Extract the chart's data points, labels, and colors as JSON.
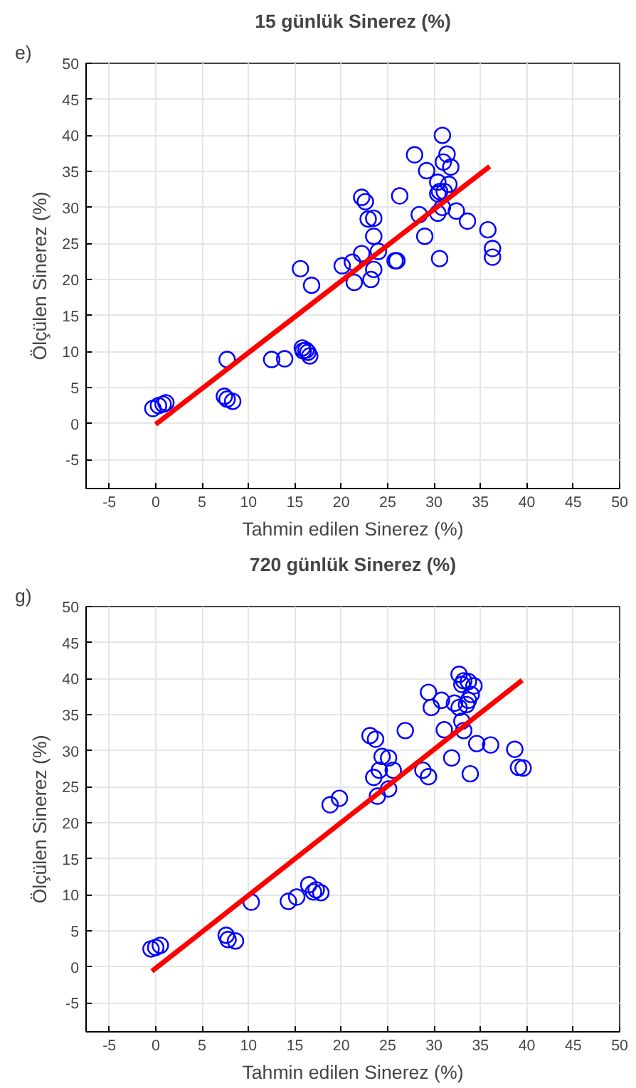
{
  "chart_data": [
    {
      "type": "scatter",
      "title": "15 günlük Sinerez (%)",
      "xlabel": "Tahmin edilen Sinerez (%)",
      "ylabel": "Ölçülen Sinerez (%)",
      "annotations": [
        "e)"
      ],
      "grid": true,
      "xlim": [
        -7.5,
        50
      ],
      "ylim": [
        -9,
        50
      ],
      "xticks": [
        -5,
        0,
        5,
        10,
        15,
        20,
        25,
        30,
        35,
        40,
        45,
        50
      ],
      "yticks": [
        -5,
        0,
        5,
        10,
        15,
        20,
        25,
        30,
        35,
        40,
        45,
        50
      ],
      "series": [
        {
          "type": "scatter",
          "marker": "circle",
          "color": "#0000ff",
          "x": [
            30.9,
            27.9,
            31.4,
            31.0,
            31.8,
            29.2,
            30.4,
            31.6,
            30.6,
            30.4,
            31.1,
            22.2,
            22.6,
            26.3,
            30.9,
            30.4,
            32.4,
            28.4,
            22.9,
            23.5,
            33.6,
            35.8,
            23.5,
            29.0,
            24.0,
            22.2,
            36.3,
            36.3,
            30.6,
            25.8,
            26.0,
            20.1,
            21.2,
            23.5,
            15.6,
            21.4,
            23.2,
            16.8,
            7.7,
            12.5,
            13.9,
            15.8,
            16.2,
            16.4,
            16.6,
            15.9,
            7.4,
            7.7,
            8.3,
            -0.3,
            0.3,
            0.8,
            1.1
          ],
          "values": [
            40.0,
            37.3,
            37.4,
            36.3,
            35.6,
            35.1,
            33.5,
            33.2,
            32.2,
            31.9,
            32.2,
            31.4,
            30.8,
            31.6,
            30.0,
            29.2,
            29.5,
            29.0,
            28.4,
            28.5,
            28.1,
            26.9,
            26.0,
            26.0,
            23.9,
            23.6,
            24.3,
            23.1,
            22.9,
            22.6,
            22.6,
            21.9,
            22.4,
            21.4,
            21.5,
            19.6,
            20.0,
            19.2,
            8.9,
            8.9,
            9.0,
            10.5,
            10.2,
            9.9,
            9.4,
            10.1,
            3.8,
            3.4,
            3.1,
            2.1,
            2.5,
            2.7,
            2.9
          ]
        },
        {
          "type": "line",
          "color": "#ff0000",
          "x": [
            0,
            36
          ],
          "values": [
            -0.1,
            35.7
          ]
        }
      ]
    },
    {
      "type": "scatter",
      "title": "720 günlük Sinerez (%)",
      "xlabel": "Tahmin edilen Sinerez (%)",
      "ylabel": "Ölçülen Sinerez (%)",
      "annotations": [
        "g)"
      ],
      "grid": true,
      "xlim": [
        -7.5,
        50
      ],
      "ylim": [
        -9,
        50
      ],
      "xticks": [
        -5,
        0,
        5,
        10,
        15,
        20,
        25,
        30,
        35,
        40,
        45,
        50
      ],
      "yticks": [
        -5,
        0,
        5,
        10,
        15,
        20,
        25,
        30,
        35,
        40,
        45,
        50
      ],
      "series": [
        {
          "type": "scatter",
          "marker": "circle",
          "color": "#0000ff",
          "x": [
            32.7,
            33.2,
            33.0,
            33.7,
            34.3,
            29.4,
            30.8,
            29.7,
            32.2,
            32.7,
            33.7,
            34.0,
            33.5,
            33.0,
            33.2,
            31.1,
            26.9,
            23.1,
            23.7,
            34.6,
            36.1,
            38.7,
            39.1,
            39.6,
            31.9,
            33.9,
            24.4,
            25.1,
            25.6,
            24.1,
            23.5,
            28.8,
            29.4,
            25.1,
            23.9,
            19.8,
            18.8,
            16.5,
            17.3,
            17.8,
            17.0,
            15.2,
            14.3,
            10.3,
            7.6,
            7.8,
            8.6,
            -0.5,
            0.0,
            0.5
          ],
          "values": [
            40.6,
            39.7,
            39.2,
            39.6,
            39.0,
            38.1,
            37.0,
            36.0,
            36.6,
            36.0,
            37.0,
            37.8,
            36.4,
            34.1,
            32.8,
            32.9,
            32.8,
            32.1,
            31.6,
            31.0,
            30.8,
            30.2,
            27.7,
            27.6,
            29.0,
            26.8,
            29.2,
            29.0,
            27.3,
            27.3,
            26.3,
            27.3,
            26.4,
            24.7,
            23.7,
            23.4,
            22.5,
            11.4,
            10.7,
            10.3,
            10.4,
            9.7,
            9.1,
            9.0,
            4.4,
            3.8,
            3.6,
            2.5,
            2.7,
            3.0
          ]
        },
        {
          "type": "line",
          "color": "#ff0000",
          "x": [
            -0.4,
            39.5
          ],
          "values": [
            -0.6,
            39.8
          ]
        }
      ]
    }
  ]
}
